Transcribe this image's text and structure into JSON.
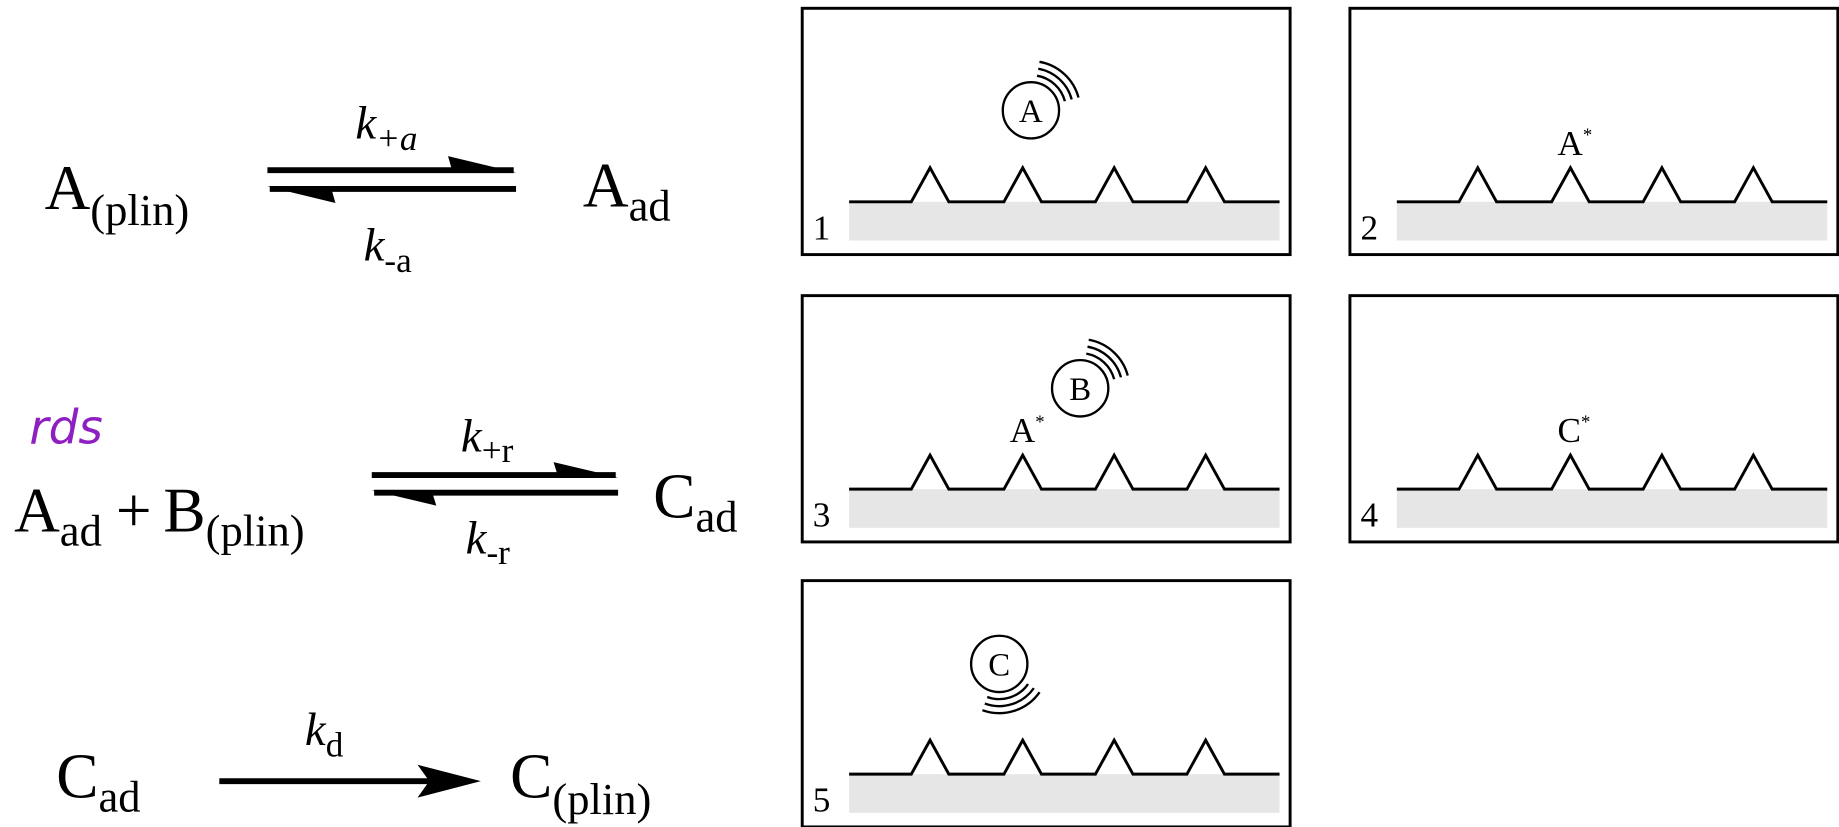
{
  "reactions": [
    {
      "reactant": [
        {
          "symbol": "A",
          "sub": "(plin)"
        }
      ],
      "product": {
        "symbol": "A",
        "sub": "ad"
      },
      "forward_rate": {
        "symbol": "k",
        "sub": "+a"
      },
      "reverse_rate": {
        "symbol": "k",
        "sub": "-a"
      }
    },
    {
      "tag": "rds",
      "reactant": [
        {
          "symbol": "A",
          "sub": "ad"
        },
        {
          "symbol": "+"
        },
        {
          "symbol": "B",
          "sub": "(plin)"
        }
      ],
      "product": {
        "symbol": "C",
        "sub": "ad"
      },
      "forward_rate": {
        "symbol": "k",
        "sub": "+r"
      },
      "reverse_rate": {
        "symbol": "k",
        "sub": "-r"
      }
    },
    {
      "reactant": [
        {
          "symbol": "C",
          "sub": "ad"
        }
      ],
      "product": {
        "symbol": "C",
        "sub": "(plin)"
      },
      "forward_rate": {
        "symbol": "k",
        "sub": "d"
      }
    }
  ],
  "panels": [
    {
      "number": "1",
      "molecule": "A"
    },
    {
      "number": "2",
      "surface_species": "A",
      "mark": "*"
    },
    {
      "number": "3",
      "surface_species": "A",
      "mark": "*",
      "molecule": "B"
    },
    {
      "number": "4",
      "surface_species": "C",
      "mark": "*"
    },
    {
      "number": "5",
      "molecule": "C"
    }
  ]
}
